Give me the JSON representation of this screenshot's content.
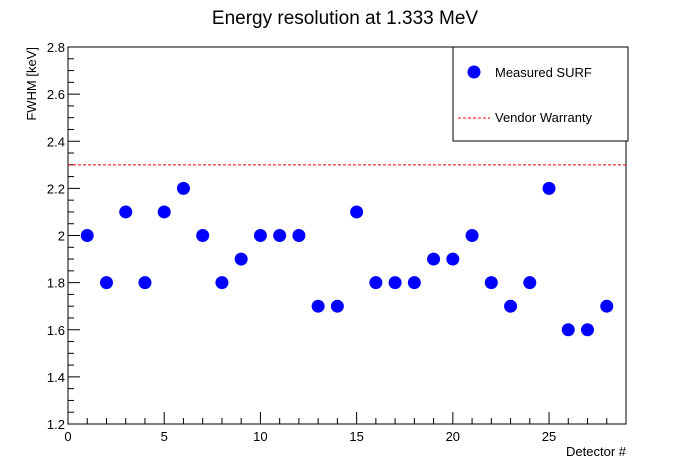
{
  "chart_data": {
    "type": "scatter",
    "title": "Energy resolution at 1.333 MeV",
    "xlabel": "Detector #",
    "ylabel": "FWHM [keV]",
    "xlim": [
      0,
      29
    ],
    "ylim": [
      1.2,
      2.8
    ],
    "x_ticks": [
      0,
      5,
      10,
      15,
      20,
      25
    ],
    "x_tick_labels": [
      "0",
      "5",
      "10",
      "15",
      "20",
      "25"
    ],
    "y_ticks": [
      1.2,
      1.4,
      1.6,
      1.8,
      2.0,
      2.2,
      2.4,
      2.6,
      2.8
    ],
    "y_tick_labels": [
      "1.2",
      "1.4",
      "1.6",
      "1.8",
      "2",
      "2.2",
      "2.4",
      "2.6",
      "2.8"
    ],
    "series": [
      {
        "name": "Measured SURF",
        "color": "#0000ff",
        "marker": "circle",
        "x": [
          1,
          2,
          3,
          4,
          5,
          6,
          7,
          8,
          9,
          10,
          11,
          12,
          13,
          14,
          15,
          16,
          17,
          18,
          19,
          20,
          21,
          22,
          23,
          24,
          25,
          26,
          27,
          28
        ],
        "y": [
          2.0,
          1.8,
          2.1,
          1.8,
          2.1,
          2.2,
          2.0,
          1.8,
          1.9,
          2.0,
          2.0,
          2.0,
          1.7,
          1.7,
          2.1,
          1.8,
          1.8,
          1.8,
          1.9,
          1.9,
          2.0,
          1.8,
          1.7,
          1.8,
          2.2,
          1.6,
          1.6,
          1.7
        ]
      }
    ],
    "reference_lines": [
      {
        "name": "Vendor Warranty",
        "y": 2.3,
        "color": "#ff0000",
        "style": "dashed"
      }
    ],
    "legend": {
      "position": "top-right",
      "entries": [
        "Measured SURF",
        "Vendor Warranty"
      ]
    },
    "grid": false
  }
}
